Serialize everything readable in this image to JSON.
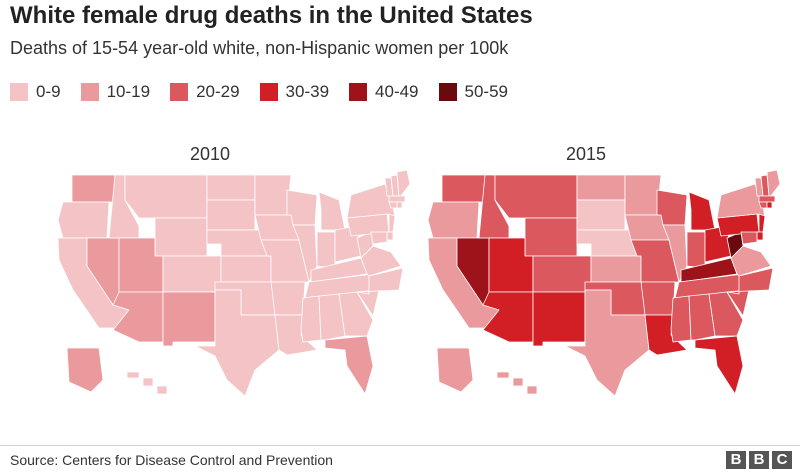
{
  "title": "White female drug deaths in the United States",
  "subtitle": "Deaths of 15-54 year-old white, non-Hispanic women per 100k",
  "legend": [
    {
      "label": "0-9",
      "color": "#f3c3c6"
    },
    {
      "label": "10-19",
      "color": "#ea999d"
    },
    {
      "label": "20-29",
      "color": "#dc585f"
    },
    {
      "label": "30-39",
      "color": "#d21f26"
    },
    {
      "label": "40-49",
      "color": "#9e1219"
    },
    {
      "label": "50-59",
      "color": "#6a0a0e"
    }
  ],
  "maps": [
    {
      "year": "2010",
      "bands": {
        "WA": "10-19",
        "OR": "0-9",
        "CA": "0-9",
        "NV": "10-19",
        "ID": "0-9",
        "MT": "0-9",
        "WY": "0-9",
        "UT": "10-19",
        "AZ": "10-19",
        "CO": "0-9",
        "NM": "10-19",
        "ND": "0-9",
        "SD": "0-9",
        "NE": "0-9",
        "KS": "0-9",
        "OK": "0-9",
        "TX": "0-9",
        "MN": "0-9",
        "IA": "0-9",
        "MO": "0-9",
        "AR": "0-9",
        "LA": "0-9",
        "WI": "0-9",
        "IL": "0-9",
        "MI": "0-9",
        "IN": "0-9",
        "OH": "0-9",
        "KY": "0-9",
        "TN": "0-9",
        "MS": "0-9",
        "AL": "0-9",
        "GA": "0-9",
        "FL": "10-19",
        "SC": "0-9",
        "NC": "0-9",
        "VA": "0-9",
        "WV": "0-9",
        "PA": "0-9",
        "NY": "0-9",
        "VT": "0-9",
        "NH": "0-9",
        "ME": "0-9",
        "MA": "0-9",
        "CT": "0-9",
        "RI": "0-9",
        "NJ": "0-9",
        "DE": "0-9",
        "MD": "0-9",
        "AK": "10-19",
        "HI": "0-9"
      }
    },
    {
      "year": "2015",
      "bands": {
        "WA": "20-29",
        "OR": "10-19",
        "CA": "10-19",
        "NV": "40-49",
        "ID": "20-29",
        "MT": "20-29",
        "WY": "20-29",
        "UT": "30-39",
        "AZ": "30-39",
        "CO": "20-29",
        "NM": "30-39",
        "ND": "10-19",
        "SD": "0-9",
        "NE": "0-9",
        "KS": "10-19",
        "OK": "20-29",
        "TX": "10-19",
        "MN": "10-19",
        "IA": "10-19",
        "MO": "20-29",
        "AR": "20-29",
        "LA": "30-39",
        "WI": "20-29",
        "IL": "10-19",
        "MI": "30-39",
        "IN": "20-29",
        "OH": "30-39",
        "KY": "40-49",
        "TN": "20-29",
        "MS": "20-29",
        "AL": "20-29",
        "GA": "20-29",
        "FL": "30-39",
        "SC": "20-29",
        "NC": "20-29",
        "VA": "10-19",
        "WV": "50-59",
        "PA": "30-39",
        "NY": "10-19",
        "VT": "10-19",
        "NH": "20-29",
        "ME": "10-19",
        "MA": "20-29",
        "CT": "20-29",
        "RI": "30-39",
        "NJ": "30-39",
        "DE": "30-39",
        "MD": "20-29",
        "AK": "10-19",
        "HI": "10-19"
      }
    }
  ],
  "source": "Source: Centers for Disease Control and Prevention",
  "logo": [
    "B",
    "B",
    "C"
  ]
}
